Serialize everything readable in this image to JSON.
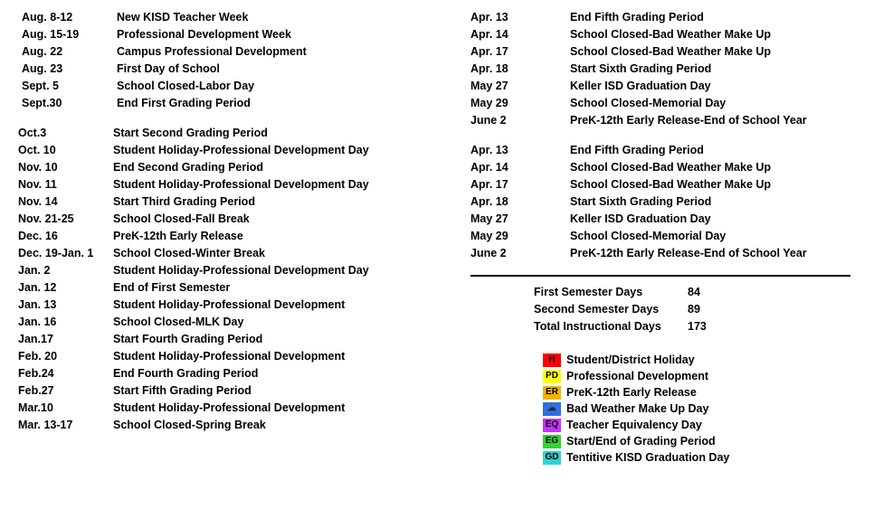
{
  "left_col": {
    "blocks": [
      {
        "rows": [
          {
            "date": "Aug. 8-12",
            "event": "New KISD Teacher Week"
          },
          {
            "date": "Aug. 15-19",
            "event": "Professional Development Week"
          },
          {
            "date": "Aug. 22",
            "event": "Campus Professional Development"
          },
          {
            "date": "Aug. 23",
            "event": "First Day of School"
          },
          {
            "date": "Sept. 5",
            "event": "School Closed-Labor Day"
          },
          {
            "date": "Sept.30",
            "event": "End First Grading Period"
          }
        ]
      },
      {
        "rows": [
          {
            "date": "Oct.3",
            "event": "Start Second Grading Period"
          },
          {
            "date": "Oct. 10",
            "event": "Student Holiday-Professional Development Day"
          },
          {
            "date": "Nov. 10",
            "event": "End Second Grading Period"
          },
          {
            "date": "Nov. 11",
            "event": "Student Holiday-Professional Development Day"
          },
          {
            "date": "Nov. 14",
            "event": "Start Third Grading Period"
          },
          {
            "date": "Nov. 21-25",
            "event": "School Closed-Fall Break"
          },
          {
            "date": "Dec. 16",
            "event": "PreK-12th Early Release"
          },
          {
            "date": "Dec. 19-Jan. 1",
            "event": "School Closed-Winter Break"
          },
          {
            "date": "Jan. 2",
            "event": "Student Holiday-Professional Development Day"
          },
          {
            "date": "Jan. 12",
            "event": "End of First Semester"
          },
          {
            "date": "Jan. 13",
            "event": "Student Holiday-Professional Development"
          },
          {
            "date": "Jan. 16",
            "event": "School Closed-MLK Day"
          },
          {
            "date": "Jan.17",
            "event": "Start Fourth Grading Period"
          },
          {
            "date": "Feb. 20",
            "event": "Student Holiday-Professional Development"
          },
          {
            "date": "Feb.24",
            "event": "End Fourth Grading Period"
          },
          {
            "date": "Feb.27",
            "event": "Start Fifth Grading Period"
          },
          {
            "date": "Mar.10",
            "event": "Student Holiday-Professional Development"
          },
          {
            "date": "Mar. 13-17",
            "event": "School Closed-Spring Break"
          }
        ]
      }
    ]
  },
  "right_col": {
    "blocks": [
      {
        "rows": [
          {
            "date": "Apr. 13",
            "event": "End Fifth Grading Period"
          },
          {
            "date": "Apr. 14",
            "event": "School Closed-Bad Weather Make Up"
          },
          {
            "date": "Apr. 17",
            "event": "School Closed-Bad Weather Make Up"
          },
          {
            "date": "Apr. 18",
            "event": "Start Sixth Grading Period"
          },
          {
            "date": "May 27",
            "event": "Keller ISD Graduation Day"
          },
          {
            "date": "May 29",
            "event": "School Closed-Memorial Day"
          },
          {
            "date": "June 2",
            "event": "PreK-12th Early Release-End of School Year"
          }
        ]
      },
      {
        "rows": [
          {
            "date": "Apr. 13",
            "event": "End Fifth Grading Period"
          },
          {
            "date": "Apr. 14",
            "event": "School Closed-Bad Weather Make Up"
          },
          {
            "date": "Apr. 17",
            "event": "School Closed-Bad Weather Make Up"
          },
          {
            "date": "Apr. 18",
            "event": "Start Sixth Grading Period"
          },
          {
            "date": "May 27",
            "event": "Keller ISD Graduation Day"
          },
          {
            "date": "May 29",
            "event": "School Closed-Memorial Day"
          },
          {
            "date": "June 2",
            "event": "PreK-12th Early Release-End of School Year"
          }
        ]
      }
    ],
    "summary": [
      {
        "label": "First Semester Days",
        "value": "84"
      },
      {
        "label": "Second Semester Days",
        "value": "89"
      },
      {
        "label": "Total Instructional Days",
        "value": "173"
      }
    ],
    "legend": [
      {
        "code": "H",
        "label": "Student/District Holiday",
        "bg": "#ff0000",
        "fg": "#000000"
      },
      {
        "code": "PD",
        "label": "Professional Development",
        "bg": "#ffff00",
        "fg": "#000000"
      },
      {
        "code": "ER",
        "label": "PreK-12th Early Release",
        "bg": "#f4b200",
        "fg": "#000000"
      },
      {
        "code": "☁",
        "label": "Bad Weather Make Up Day",
        "bg": "#2f6fe0",
        "fg": "#2a2a2a"
      },
      {
        "code": "EQ",
        "label": "Teacher Equivalency Day",
        "bg": "#c733ff",
        "fg": "#000000"
      },
      {
        "code": "EG",
        "label": "Start/End of Grading Period",
        "bg": "#33d433",
        "fg": "#000000"
      },
      {
        "code": "GD",
        "label": "Tentitive KISD Graduation Day",
        "bg": "#33d0d0",
        "fg": "#000000"
      }
    ]
  }
}
